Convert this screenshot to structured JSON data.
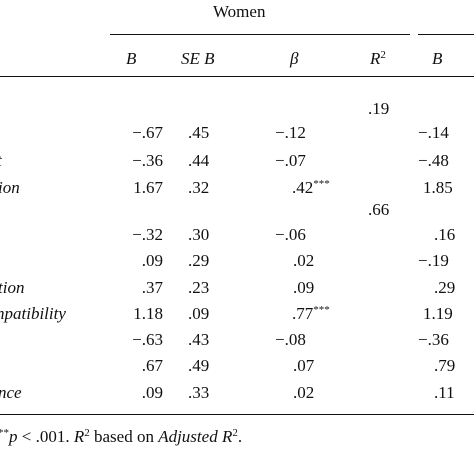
{
  "table": {
    "group_header": "Women",
    "columns": {
      "b": "B",
      "se_b": "SE B",
      "beta": "β",
      "r2_base": "R",
      "r2_sup": "2",
      "b_next": "B"
    },
    "blocks": [
      {
        "r2": ".19",
        "rows": [
          {
            "label": "",
            "b": "−.67",
            "se": ".45",
            "beta": "−.12",
            "sig": "",
            "b2": "−.14"
          },
          {
            "label": "t",
            "b": "−.36",
            "se": ".44",
            "beta": "−.07",
            "sig": "",
            "b2": "−.48"
          },
          {
            "label": "ion",
            "b": "1.67",
            "se": ".32",
            "beta": ".42",
            "sig": "***",
            "b2": "1.85"
          }
        ]
      },
      {
        "r2": ".66",
        "rows": [
          {
            "label": "",
            "b": "−.32",
            "se": ".30",
            "beta": "−.06",
            "sig": "",
            "b2": ".16"
          },
          {
            "label": "",
            "b": ".09",
            "se": ".29",
            "beta": ".02",
            "sig": "",
            "b2": "−.19"
          },
          {
            "label": "tion",
            "b": ".37",
            "se": ".23",
            "beta": ".09",
            "sig": "",
            "b2": ".29"
          },
          {
            "label": "npatibility",
            "b": "1.18",
            "se": ".09",
            "beta": ".77",
            "sig": "***",
            "b2": "1.19"
          },
          {
            "label": "",
            "b": "−.63",
            "se": ".43",
            "beta": "−.08",
            "sig": "",
            "b2": "−.36"
          },
          {
            "label": "",
            "b": ".67",
            "se": ".49",
            "beta": ".07",
            "sig": "",
            "b2": ".79"
          },
          {
            "label": "nce",
            "b": ".09",
            "se": ".33",
            "beta": ".02",
            "sig": "",
            "b2": ".11"
          }
        ]
      }
    ],
    "footnote": {
      "sup_stars": "**",
      "p_text": "p",
      "p_rest": " < .001. ",
      "r2_base": "R",
      "r2_sup": "2",
      "mid": " based on ",
      "adj": "Adjusted R",
      "adj_sup": "2",
      "end": "."
    }
  }
}
